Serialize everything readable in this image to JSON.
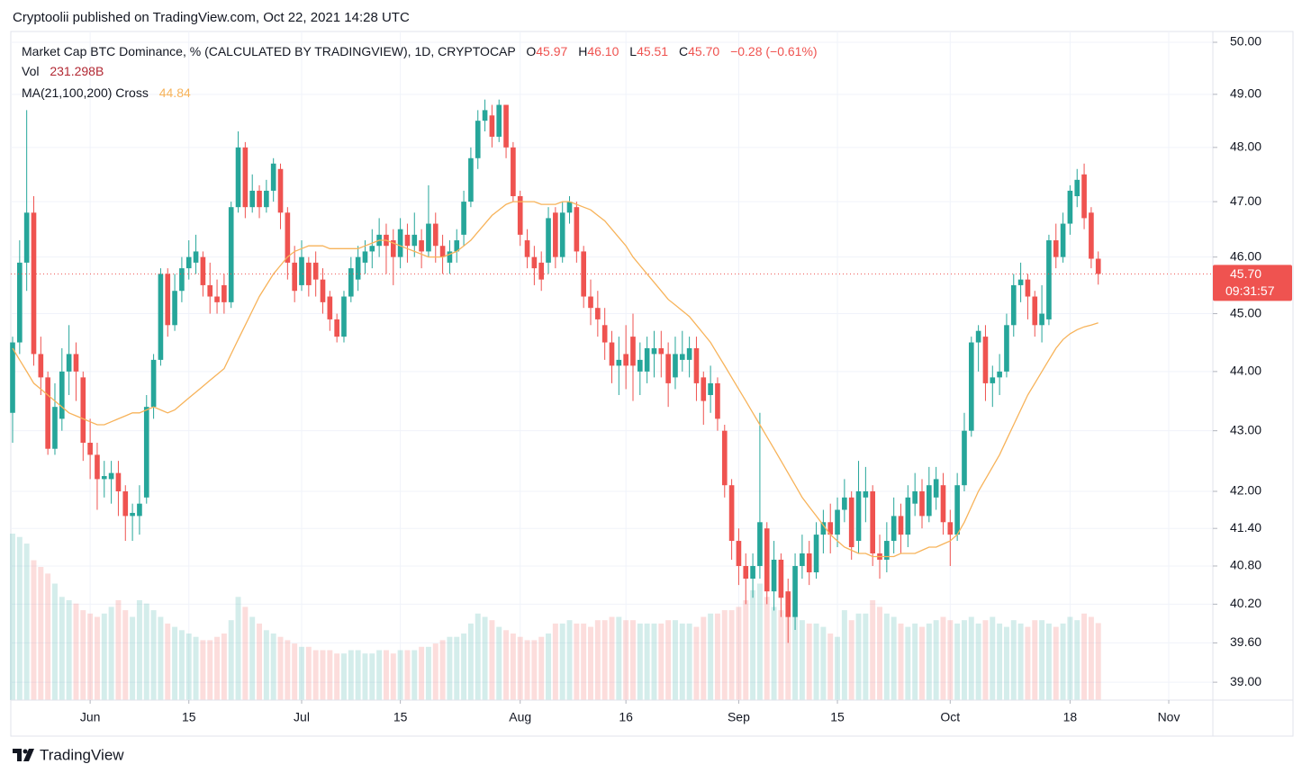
{
  "header": {
    "published": "Cryptoolii published on TradingView.com, Oct 22, 2021 14:28 UTC"
  },
  "footer": {
    "brand": "TradingView"
  },
  "chart_data": {
    "type": "candlestick",
    "title": "Market Cap BTC Dominance, % (CALCULATED BY TRADINGVIEW), 1D, CRYPTOCAP",
    "ohlc_prefixes": [
      "O",
      "H",
      "L",
      "C"
    ],
    "last_labels": {
      "open": "45.97",
      "high": "46.10",
      "low": "45.51",
      "close": "45.70"
    },
    "change_label": "−0.28 (−0.61%)",
    "countdown": "09:31:57",
    "log_scale": true,
    "grid": true,
    "up_color": "#26a69a",
    "down_color": "#ef5350",
    "ylim": [
      38.73,
      50.21
    ],
    "yticks": [
      {
        "value": 39,
        "label": "39.00"
      },
      {
        "value": 39.6,
        "label": "39.60"
      },
      {
        "value": 40.2,
        "label": "40.20"
      },
      {
        "value": 40.8,
        "label": "40.80"
      },
      {
        "value": 41.4,
        "label": "41.40"
      },
      {
        "value": 42,
        "label": "42.00"
      },
      {
        "value": 43,
        "label": "43.00"
      },
      {
        "value": 44,
        "label": "44.00"
      },
      {
        "value": 45,
        "label": "45.00"
      },
      {
        "value": 46,
        "label": "46.00"
      },
      {
        "value": 47,
        "label": "47.00"
      },
      {
        "value": 48,
        "label": "48.00"
      },
      {
        "value": 49,
        "label": "49.00"
      },
      {
        "value": 50,
        "label": "50.00"
      }
    ],
    "xlim": [
      "2021-05-21",
      "2021-11-07"
    ],
    "xticks": [
      {
        "value": "2021-06-01",
        "label": "Jun"
      },
      {
        "value": "2021-06-15",
        "label": "15"
      },
      {
        "value": "2021-07-01",
        "label": "Jul"
      },
      {
        "value": "2021-07-15",
        "label": "15"
      },
      {
        "value": "2021-08-01",
        "label": "Aug"
      },
      {
        "value": "2021-08-16",
        "label": "16"
      },
      {
        "value": "2021-09-01",
        "label": "Sep"
      },
      {
        "value": "2021-09-15",
        "label": "15"
      },
      {
        "value": "2021-10-01",
        "label": "Oct"
      },
      {
        "value": "2021-10-18",
        "label": "18"
      },
      {
        "value": "2021-11-01",
        "label": "Nov"
      }
    ],
    "x": [
      "2021-05-21",
      "2021-05-22",
      "2021-05-23",
      "2021-05-24",
      "2021-05-25",
      "2021-05-26",
      "2021-05-27",
      "2021-05-28",
      "2021-05-29",
      "2021-05-30",
      "2021-05-31",
      "2021-06-01",
      "2021-06-02",
      "2021-06-03",
      "2021-06-04",
      "2021-06-05",
      "2021-06-06",
      "2021-06-07",
      "2021-06-08",
      "2021-06-09",
      "2021-06-10",
      "2021-06-11",
      "2021-06-12",
      "2021-06-13",
      "2021-06-14",
      "2021-06-15",
      "2021-06-16",
      "2021-06-17",
      "2021-06-18",
      "2021-06-19",
      "2021-06-20",
      "2021-06-21",
      "2021-06-22",
      "2021-06-23",
      "2021-06-24",
      "2021-06-25",
      "2021-06-26",
      "2021-06-27",
      "2021-06-28",
      "2021-06-29",
      "2021-06-30",
      "2021-07-01",
      "2021-07-02",
      "2021-07-03",
      "2021-07-04",
      "2021-07-05",
      "2021-07-06",
      "2021-07-07",
      "2021-07-08",
      "2021-07-09",
      "2021-07-10",
      "2021-07-11",
      "2021-07-12",
      "2021-07-13",
      "2021-07-14",
      "2021-07-15",
      "2021-07-16",
      "2021-07-17",
      "2021-07-18",
      "2021-07-19",
      "2021-07-20",
      "2021-07-21",
      "2021-07-22",
      "2021-07-23",
      "2021-07-24",
      "2021-07-25",
      "2021-07-26",
      "2021-07-27",
      "2021-07-28",
      "2021-07-29",
      "2021-07-30",
      "2021-07-31",
      "2021-08-01",
      "2021-08-02",
      "2021-08-03",
      "2021-08-04",
      "2021-08-05",
      "2021-08-06",
      "2021-08-07",
      "2021-08-08",
      "2021-08-09",
      "2021-08-10",
      "2021-08-11",
      "2021-08-12",
      "2021-08-13",
      "2021-08-14",
      "2021-08-15",
      "2021-08-16",
      "2021-08-17",
      "2021-08-18",
      "2021-08-19",
      "2021-08-20",
      "2021-08-21",
      "2021-08-22",
      "2021-08-23",
      "2021-08-24",
      "2021-08-25",
      "2021-08-26",
      "2021-08-27",
      "2021-08-28",
      "2021-08-29",
      "2021-08-30",
      "2021-08-31",
      "2021-09-01",
      "2021-09-02",
      "2021-09-03",
      "2021-09-04",
      "2021-09-05",
      "2021-09-06",
      "2021-09-07",
      "2021-09-08",
      "2021-09-09",
      "2021-09-10",
      "2021-09-11",
      "2021-09-12",
      "2021-09-13",
      "2021-09-14",
      "2021-09-15",
      "2021-09-16",
      "2021-09-17",
      "2021-09-18",
      "2021-09-19",
      "2021-09-20",
      "2021-09-21",
      "2021-09-22",
      "2021-09-23",
      "2021-09-24",
      "2021-09-25",
      "2021-09-26",
      "2021-09-27",
      "2021-09-28",
      "2021-09-29",
      "2021-09-30",
      "2021-10-01",
      "2021-10-02",
      "2021-10-03",
      "2021-10-04",
      "2021-10-05",
      "2021-10-06",
      "2021-10-07",
      "2021-10-08",
      "2021-10-09",
      "2021-10-10",
      "2021-10-11",
      "2021-10-12",
      "2021-10-13",
      "2021-10-14",
      "2021-10-15",
      "2021-10-16",
      "2021-10-17",
      "2021-10-18",
      "2021-10-19",
      "2021-10-20",
      "2021-10-21",
      "2021-10-22"
    ],
    "open": [
      43.3,
      44.5,
      45.9,
      46.8,
      44.3,
      43.9,
      42.7,
      43.2,
      44.0,
      44.3,
      43.9,
      42.8,
      42.6,
      42.2,
      42.2,
      42.3,
      42.0,
      41.6,
      41.6,
      41.9,
      43.4,
      44.2,
      45.7,
      44.8,
      45.4,
      45.8,
      45.9,
      46.0,
      45.5,
      45.3,
      45.5,
      45.2,
      46.9,
      48.0,
      46.9,
      47.2,
      46.9,
      47.2,
      47.6,
      46.8,
      45.9,
      45.5,
      45.9,
      45.9,
      45.6,
      45.3,
      44.9,
      44.6,
      45.3,
      45.6,
      45.9,
      46.1,
      46.2,
      46.4,
      46.3,
      46.0,
      46.4,
      46.2,
      46.3,
      46.1,
      46.6,
      46.2,
      45.9,
      46.1,
      46.4,
      47.0,
      47.8,
      48.5,
      48.6,
      48.2,
      48.8,
      48.0,
      47.1,
      46.3,
      46.0,
      45.9,
      45.9,
      46.8,
      46.0,
      46.8,
      46.9,
      46.1,
      45.3,
      45.1,
      44.8,
      44.5,
      44.1,
      44.3,
      44.6,
      44.0,
      44.0,
      44.3,
      44.4,
      44.3,
      43.9,
      44.2,
      44.2,
      44.4,
      43.9,
      43.6,
      43.8,
      43.0,
      42.1,
      41.2,
      40.8,
      40.6,
      40.8,
      41.4,
      40.4,
      40.9,
      40.4,
      40.0,
      40.8,
      41.0,
      40.7,
      41.3,
      41.5,
      41.3,
      41.7,
      41.9,
      41.2,
      41.9,
      42.0,
      41.0,
      40.9,
      41.2,
      41.6,
      41.3,
      41.8,
      42.0,
      41.6,
      41.9,
      42.1,
      41.5,
      41.3,
      42.1,
      43.0,
      44.5,
      44.6,
      43.8,
      43.9,
      44.0,
      44.8,
      45.5,
      45.6,
      45.3,
      44.8,
      44.9,
      46.3,
      46.0,
      46.6,
      47.1,
      47.5,
      46.8,
      45.97
    ],
    "high": [
      44.6,
      46.3,
      48.7,
      47.1,
      44.6,
      44.0,
      43.8,
      44.4,
      44.8,
      44.5,
      44.0,
      43.2,
      42.8,
      42.5,
      42.5,
      42.5,
      42.1,
      41.8,
      42.1,
      43.6,
      44.3,
      45.8,
      45.8,
      45.7,
      46.0,
      46.3,
      46.4,
      46.1,
      45.9,
      45.6,
      45.7,
      47.0,
      48.3,
      48.1,
      47.5,
      47.3,
      47.4,
      47.8,
      47.7,
      46.9,
      46.2,
      46.3,
      46.0,
      46.1,
      45.8,
      45.4,
      45.0,
      45.4,
      46.0,
      46.2,
      46.3,
      46.5,
      46.7,
      46.6,
      46.5,
      46.7,
      46.6,
      46.8,
      46.5,
      47.3,
      46.8,
      46.4,
      46.3,
      46.5,
      47.2,
      48.0,
      48.7,
      48.9,
      48.8,
      48.9,
      48.8,
      48.1,
      47.2,
      46.5,
      46.2,
      46.1,
      46.9,
      46.9,
      47.0,
      47.1,
      47.0,
      46.2,
      45.6,
      45.4,
      45.1,
      44.7,
      44.6,
      44.8,
      45.0,
      44.5,
      44.6,
      44.7,
      44.7,
      44.5,
      44.6,
      44.7,
      44.6,
      44.6,
      44.0,
      44.1,
      43.9,
      43.1,
      42.2,
      41.4,
      41.0,
      41.0,
      43.3,
      41.5,
      41.2,
      41.0,
      40.6,
      41.0,
      41.3,
      41.2,
      41.5,
      41.7,
      41.8,
      41.9,
      42.2,
      42.0,
      42.5,
      42.4,
      42.1,
      41.3,
      41.5,
      41.9,
      41.8,
      42.1,
      42.3,
      42.2,
      42.4,
      42.4,
      42.3,
      41.7,
      42.3,
      43.3,
      44.6,
      44.8,
      44.8,
      44.1,
      44.3,
      45.0,
      45.7,
      45.9,
      45.7,
      45.4,
      45.5,
      46.4,
      46.6,
      46.8,
      47.3,
      47.6,
      47.7,
      46.9,
      46.1
    ],
    "low": [
      42.8,
      44.3,
      45.4,
      44.1,
      43.6,
      42.6,
      42.6,
      43.0,
      43.6,
      43.5,
      42.5,
      42.2,
      41.7,
      41.9,
      41.8,
      41.6,
      41.2,
      41.2,
      41.3,
      41.8,
      43.2,
      44.1,
      44.6,
      44.7,
      45.2,
      45.6,
      45.7,
      45.3,
      45.0,
      45.0,
      45.0,
      45.1,
      46.8,
      46.7,
      46.8,
      46.7,
      46.8,
      47.0,
      46.5,
      45.6,
      45.2,
      45.4,
      45.3,
      45.3,
      45.0,
      44.7,
      44.5,
      44.5,
      45.2,
      45.4,
      45.7,
      45.8,
      46.0,
      45.7,
      45.5,
      45.8,
      45.9,
      46.0,
      45.8,
      46.0,
      45.9,
      45.7,
      45.7,
      45.9,
      46.2,
      46.9,
      47.6,
      48.3,
      48.0,
      48.1,
      47.8,
      47.0,
      46.2,
      45.8,
      45.5,
      45.4,
      45.7,
      45.8,
      45.9,
      46.6,
      45.9,
      45.1,
      44.8,
      44.6,
      44.2,
      43.8,
      43.6,
      43.7,
      43.5,
      43.6,
      43.8,
      43.9,
      43.9,
      43.4,
      43.7,
      44.0,
      43.9,
      43.5,
      43.1,
      43.3,
      43.0,
      41.9,
      40.9,
      40.5,
      40.2,
      40.3,
      40.6,
      40.2,
      40.1,
      40.0,
      39.6,
      39.8,
      40.6,
      40.5,
      40.6,
      41.0,
      41.0,
      41.1,
      41.5,
      40.9,
      41.0,
      41.5,
      40.8,
      40.6,
      40.7,
      41.0,
      41.0,
      41.1,
      41.6,
      41.4,
      41.5,
      41.7,
      41.3,
      40.8,
      41.2,
      42.0,
      42.9,
      44.0,
      43.5,
      43.4,
      43.6,
      43.9,
      44.6,
      45.2,
      44.9,
      44.6,
      44.5,
      44.8,
      45.8,
      45.9,
      46.4,
      46.9,
      46.5,
      45.8,
      45.51
    ],
    "close": [
      44.5,
      45.9,
      46.8,
      44.3,
      43.9,
      42.7,
      43.4,
      44.0,
      44.3,
      44.0,
      42.8,
      42.6,
      42.2,
      42.25,
      42.3,
      42.0,
      41.6,
      41.65,
      41.8,
      43.4,
      44.2,
      45.7,
      44.8,
      45.4,
      45.8,
      46.0,
      46.1,
      45.5,
      45.3,
      45.2,
      45.2,
      46.9,
      48.0,
      46.9,
      47.2,
      46.9,
      47.2,
      47.7,
      46.8,
      45.9,
      45.4,
      46.0,
      45.5,
      45.6,
      45.2,
      44.9,
      44.6,
      45.3,
      45.8,
      46.0,
      46.1,
      46.2,
      46.4,
      46.2,
      46.0,
      46.5,
      46.2,
      46.4,
      46.1,
      46.6,
      46.2,
      46.0,
      46.1,
      46.3,
      47.0,
      47.8,
      48.5,
      48.7,
      48.2,
      48.8,
      48.0,
      47.1,
      46.4,
      46.0,
      45.8,
      45.6,
      46.7,
      46.0,
      46.8,
      47.0,
      46.1,
      45.3,
      45.1,
      44.9,
      44.5,
      44.1,
      44.2,
      44.1,
      44.1,
      44.2,
      44.4,
      44.4,
      44.3,
      43.8,
      44.3,
      44.3,
      44.4,
      43.8,
      43.5,
      43.8,
      43.2,
      42.1,
      41.2,
      40.8,
      40.6,
      40.8,
      41.5,
      40.4,
      40.9,
      40.3,
      40.0,
      40.8,
      41.0,
      40.7,
      41.3,
      41.5,
      41.3,
      41.7,
      41.9,
      41.1,
      42.0,
      42.0,
      41.0,
      40.9,
      41.2,
      41.6,
      41.3,
      41.9,
      42.0,
      41.6,
      42.1,
      42.2,
      41.5,
      41.3,
      42.1,
      43.0,
      44.5,
      44.7,
      43.8,
      43.9,
      44.0,
      44.8,
      45.5,
      45.6,
      45.3,
      44.8,
      45.0,
      46.3,
      46.0,
      46.6,
      47.2,
      47.4,
      46.7,
      45.97,
      45.7
    ],
    "volume_name": "Vol",
    "volume_label": "231.298B",
    "volume": [
      500,
      490,
      470,
      420,
      400,
      380,
      350,
      310,
      300,
      290,
      270,
      260,
      250,
      260,
      280,
      300,
      270,
      250,
      300,
      290,
      270,
      250,
      230,
      220,
      210,
      200,
      190,
      180,
      180,
      190,
      200,
      240,
      310,
      280,
      250,
      230,
      210,
      200,
      190,
      180,
      170,
      160,
      160,
      150,
      150,
      150,
      140,
      140,
      150,
      150,
      140,
      140,
      150,
      150,
      140,
      150,
      150,
      150,
      160,
      160,
      170,
      180,
      190,
      190,
      200,
      230,
      260,
      250,
      240,
      220,
      210,
      200,
      190,
      180,
      180,
      190,
      200,
      230,
      230,
      240,
      230,
      230,
      220,
      240,
      240,
      250,
      250,
      240,
      240,
      230,
      230,
      230,
      230,
      240,
      240,
      230,
      230,
      220,
      250,
      260,
      260,
      270,
      270,
      280,
      300,
      330,
      350,
      310,
      280,
      270,
      260,
      250,
      240,
      230,
      230,
      220,
      200,
      190,
      270,
      240,
      260,
      260,
      300,
      280,
      260,
      250,
      230,
      220,
      230,
      220,
      230,
      240,
      250,
      240,
      230,
      240,
      250,
      230,
      240,
      250,
      230,
      220,
      240,
      230,
      220,
      240,
      240,
      230,
      220,
      230,
      250,
      240,
      260,
      250,
      231.298
    ],
    "ma_name": "MA(21,100,200) Cross",
    "ma_color": "#f7b35a",
    "ma": [
      44.4,
      44.2,
      44.0,
      43.8,
      43.7,
      43.6,
      43.5,
      43.4,
      43.3,
      43.25,
      43.2,
      43.15,
      43.1,
      43.1,
      43.15,
      43.2,
      43.25,
      43.3,
      43.3,
      43.35,
      43.4,
      43.35,
      43.3,
      43.35,
      43.45,
      43.55,
      43.65,
      43.75,
      43.85,
      43.95,
      44.05,
      44.3,
      44.55,
      44.8,
      45.05,
      45.3,
      45.5,
      45.7,
      45.85,
      46.0,
      46.1,
      46.15,
      46.2,
      46.2,
      46.2,
      46.15,
      46.15,
      46.15,
      46.15,
      46.15,
      46.2,
      46.25,
      46.3,
      46.3,
      46.25,
      46.2,
      46.15,
      46.1,
      46.05,
      46.0,
      46.0,
      46.0,
      46.05,
      46.1,
      46.2,
      46.3,
      46.45,
      46.6,
      46.75,
      46.85,
      46.95,
      47.0,
      47.0,
      47.0,
      47.0,
      46.95,
      46.95,
      46.95,
      47.0,
      47.0,
      46.95,
      46.9,
      46.85,
      46.75,
      46.65,
      46.5,
      46.35,
      46.2,
      46.0,
      45.85,
      45.7,
      45.55,
      45.4,
      45.25,
      45.15,
      45.05,
      44.95,
      44.8,
      44.65,
      44.5,
      44.3,
      44.1,
      43.9,
      43.7,
      43.5,
      43.3,
      43.1,
      42.9,
      42.7,
      42.5,
      42.3,
      42.1,
      41.9,
      41.75,
      41.6,
      41.45,
      41.3,
      41.2,
      41.1,
      41.05,
      41.0,
      41.0,
      40.95,
      40.95,
      40.95,
      40.95,
      41.0,
      41.0,
      41.0,
      41.05,
      41.1,
      41.1,
      41.15,
      41.2,
      41.3,
      41.5,
      41.75,
      42.0,
      42.2,
      42.4,
      42.6,
      42.85,
      43.1,
      43.35,
      43.6,
      43.8,
      44.0,
      44.2,
      44.4,
      44.55,
      44.65,
      44.72,
      44.77,
      44.8,
      44.84
    ]
  }
}
